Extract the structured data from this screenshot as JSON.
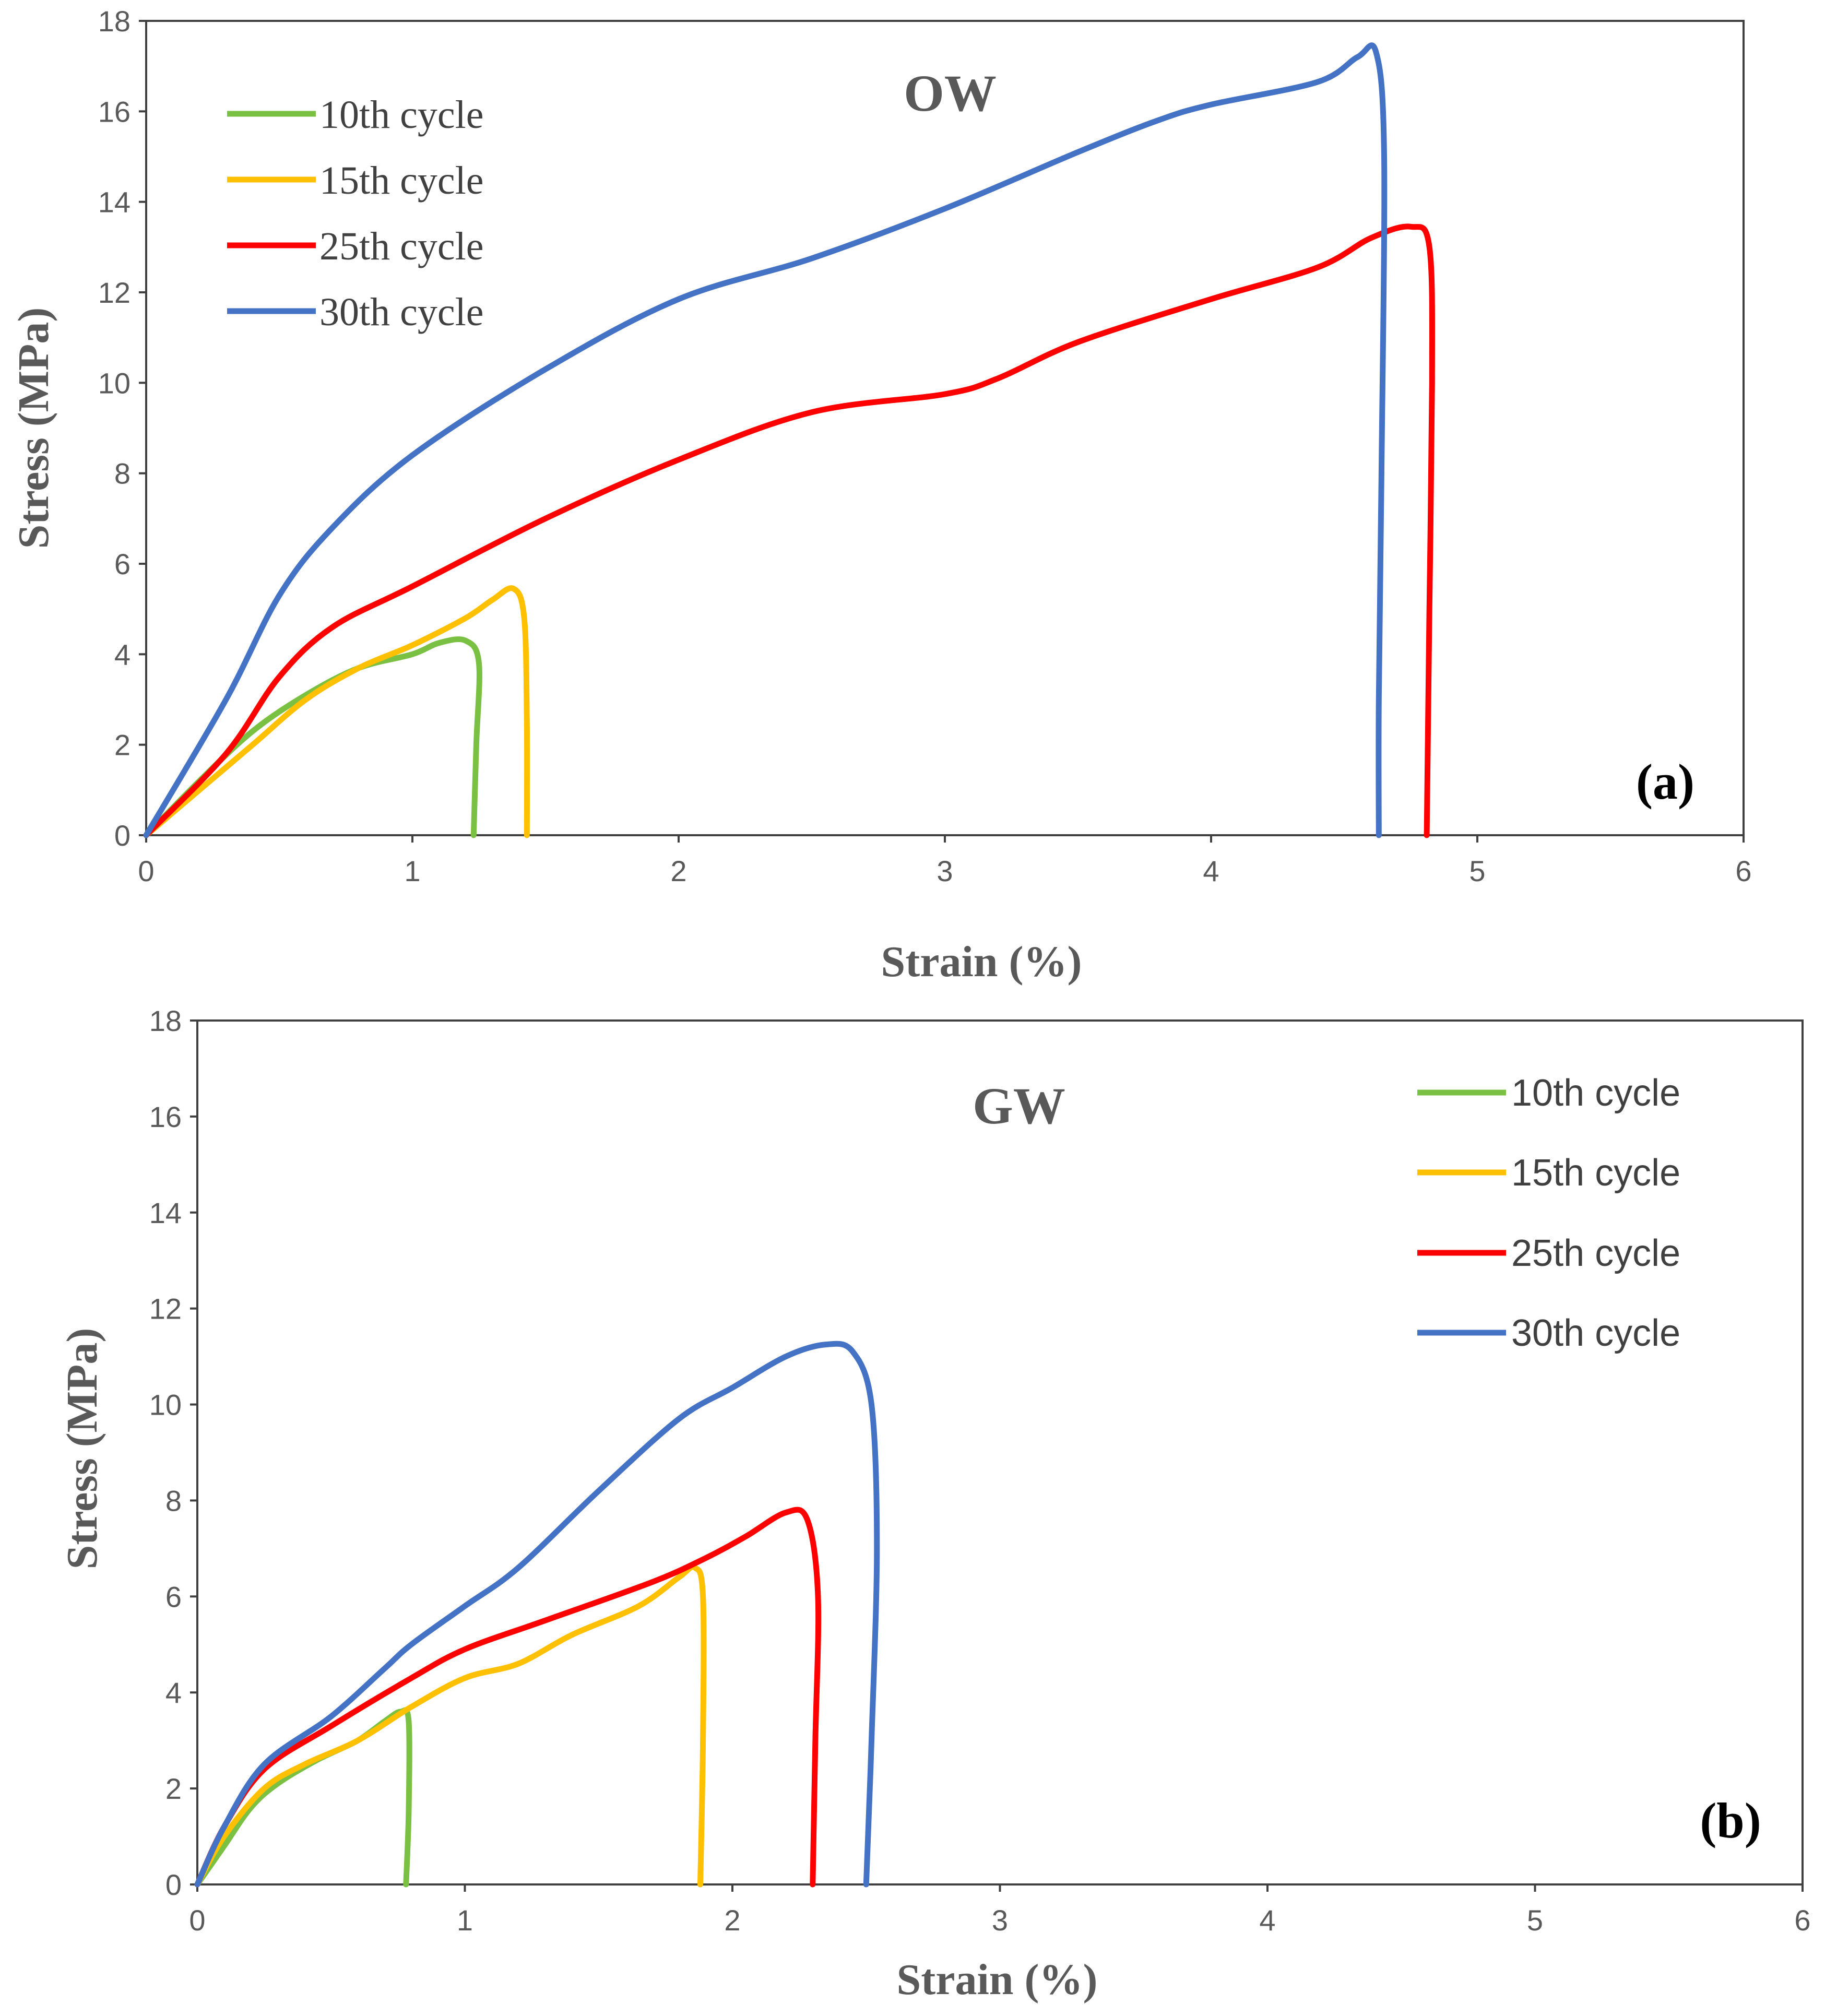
{
  "chart_data": [
    {
      "type": "line",
      "title": "OW",
      "panel_label": "(a)",
      "xlabel": "Strain (%)",
      "ylabel": "Stress (MPa)",
      "xlim": [
        0,
        6
      ],
      "ylim": [
        0,
        18
      ],
      "xticks": [
        0,
        1,
        2,
        3,
        4,
        5,
        6
      ],
      "yticks": [
        0,
        2,
        4,
        6,
        8,
        10,
        12,
        14,
        16,
        18
      ],
      "grid": false,
      "legend_position": "top-left",
      "series": [
        {
          "name": "10th cycle",
          "color": "#7ac143",
          "points": [
            [
              0,
              0
            ],
            [
              0.2,
              1.2
            ],
            [
              0.4,
              2.3
            ],
            [
              0.6,
              3.1
            ],
            [
              0.8,
              3.7
            ],
            [
              1.0,
              4.0
            ],
            [
              1.1,
              4.25
            ],
            [
              1.2,
              4.3
            ],
            [
              1.25,
              3.8
            ],
            [
              1.24,
              2.0
            ],
            [
              1.23,
              0
            ]
          ]
        },
        {
          "name": "15th cycle",
          "color": "#ffc000",
          "points": [
            [
              0,
              0
            ],
            [
              0.2,
              1.0
            ],
            [
              0.4,
              2.0
            ],
            [
              0.6,
              3.0
            ],
            [
              0.8,
              3.7
            ],
            [
              1.0,
              4.2
            ],
            [
              1.2,
              4.8
            ],
            [
              1.3,
              5.2
            ],
            [
              1.38,
              5.45
            ],
            [
              1.42,
              4.8
            ],
            [
              1.43,
              2.5
            ],
            [
              1.43,
              0
            ]
          ]
        },
        {
          "name": "25th cycle",
          "color": "#ff0000",
          "points": [
            [
              0,
              0
            ],
            [
              0.3,
              1.8
            ],
            [
              0.5,
              3.5
            ],
            [
              0.7,
              4.6
            ],
            [
              1.0,
              5.5
            ],
            [
              1.5,
              7.0
            ],
            [
              2.0,
              8.3
            ],
            [
              2.5,
              9.35
            ],
            [
              3.0,
              9.75
            ],
            [
              3.2,
              10.1
            ],
            [
              3.5,
              10.9
            ],
            [
              4.0,
              11.85
            ],
            [
              4.4,
              12.55
            ],
            [
              4.6,
              13.2
            ],
            [
              4.75,
              13.45
            ],
            [
              4.82,
              13.0
            ],
            [
              4.83,
              10.0
            ],
            [
              4.82,
              5.0
            ],
            [
              4.81,
              0
            ]
          ]
        },
        {
          "name": "30th cycle",
          "color": "#4472c4",
          "points": [
            [
              0,
              0
            ],
            [
              0.3,
              3.0
            ],
            [
              0.5,
              5.3
            ],
            [
              0.7,
              6.8
            ],
            [
              1.0,
              8.4
            ],
            [
              1.5,
              10.3
            ],
            [
              2.0,
              11.85
            ],
            [
              2.5,
              12.75
            ],
            [
              3.0,
              13.85
            ],
            [
              3.5,
              15.1
            ],
            [
              3.8,
              15.8
            ],
            [
              4.0,
              16.15
            ],
            [
              4.4,
              16.65
            ],
            [
              4.55,
              17.2
            ],
            [
              4.62,
              17.3
            ],
            [
              4.65,
              15.0
            ],
            [
              4.64,
              8.0
            ],
            [
              4.63,
              3.0
            ],
            [
              4.63,
              0
            ]
          ]
        }
      ]
    },
    {
      "type": "line",
      "title": "GW",
      "panel_label": "(b)",
      "xlabel": "Strain (%)",
      "ylabel": "Stress (MPa)",
      "xlim": [
        0,
        6
      ],
      "ylim": [
        0,
        18
      ],
      "xticks": [
        0,
        1,
        2,
        3,
        4,
        5,
        6
      ],
      "yticks": [
        0,
        2,
        4,
        6,
        8,
        10,
        12,
        14,
        16,
        18
      ],
      "grid": false,
      "legend_position": "top-right",
      "series": [
        {
          "name": "10th cycle",
          "color": "#7ac143",
          "points": [
            [
              0,
              0
            ],
            [
              0.1,
              0.8
            ],
            [
              0.2,
              1.6
            ],
            [
              0.3,
              2.1
            ],
            [
              0.45,
              2.6
            ],
            [
              0.6,
              3.0
            ],
            [
              0.7,
              3.4
            ],
            [
              0.76,
              3.6
            ],
            [
              0.79,
              3.4
            ],
            [
              0.79,
              1.5
            ],
            [
              0.78,
              0
            ]
          ]
        },
        {
          "name": "15th cycle",
          "color": "#ffc000",
          "points": [
            [
              0,
              0
            ],
            [
              0.1,
              1.0
            ],
            [
              0.25,
              2.0
            ],
            [
              0.4,
              2.5
            ],
            [
              0.6,
              3.0
            ],
            [
              0.8,
              3.7
            ],
            [
              1.0,
              4.3
            ],
            [
              1.2,
              4.6
            ],
            [
              1.4,
              5.2
            ],
            [
              1.65,
              5.8
            ],
            [
              1.8,
              6.4
            ],
            [
              1.86,
              6.6
            ],
            [
              1.89,
              6.0
            ],
            [
              1.89,
              3.0
            ],
            [
              1.88,
              0
            ]
          ]
        },
        {
          "name": "25th cycle",
          "color": "#ff0000",
          "points": [
            [
              0,
              0
            ],
            [
              0.1,
              1.2
            ],
            [
              0.25,
              2.4
            ],
            [
              0.5,
              3.3
            ],
            [
              0.8,
              4.3
            ],
            [
              1.0,
              4.9
            ],
            [
              1.3,
              5.5
            ],
            [
              1.7,
              6.3
            ],
            [
              1.9,
              6.8
            ],
            [
              2.05,
              7.25
            ],
            [
              2.2,
              7.75
            ],
            [
              2.28,
              7.6
            ],
            [
              2.32,
              6.0
            ],
            [
              2.31,
              3.0
            ],
            [
              2.3,
              0
            ]
          ]
        },
        {
          "name": "30th cycle",
          "color": "#4472c4",
          "points": [
            [
              0,
              0
            ],
            [
              0.1,
              1.2
            ],
            [
              0.25,
              2.5
            ],
            [
              0.5,
              3.5
            ],
            [
              0.7,
              4.5
            ],
            [
              0.8,
              5.0
            ],
            [
              1.0,
              5.8
            ],
            [
              1.2,
              6.6
            ],
            [
              1.5,
              8.2
            ],
            [
              1.8,
              9.7
            ],
            [
              2.0,
              10.35
            ],
            [
              2.2,
              11.0
            ],
            [
              2.35,
              11.25
            ],
            [
              2.45,
              11.1
            ],
            [
              2.52,
              10.0
            ],
            [
              2.54,
              7.0
            ],
            [
              2.52,
              3.0
            ],
            [
              2.5,
              0
            ]
          ]
        }
      ]
    }
  ]
}
